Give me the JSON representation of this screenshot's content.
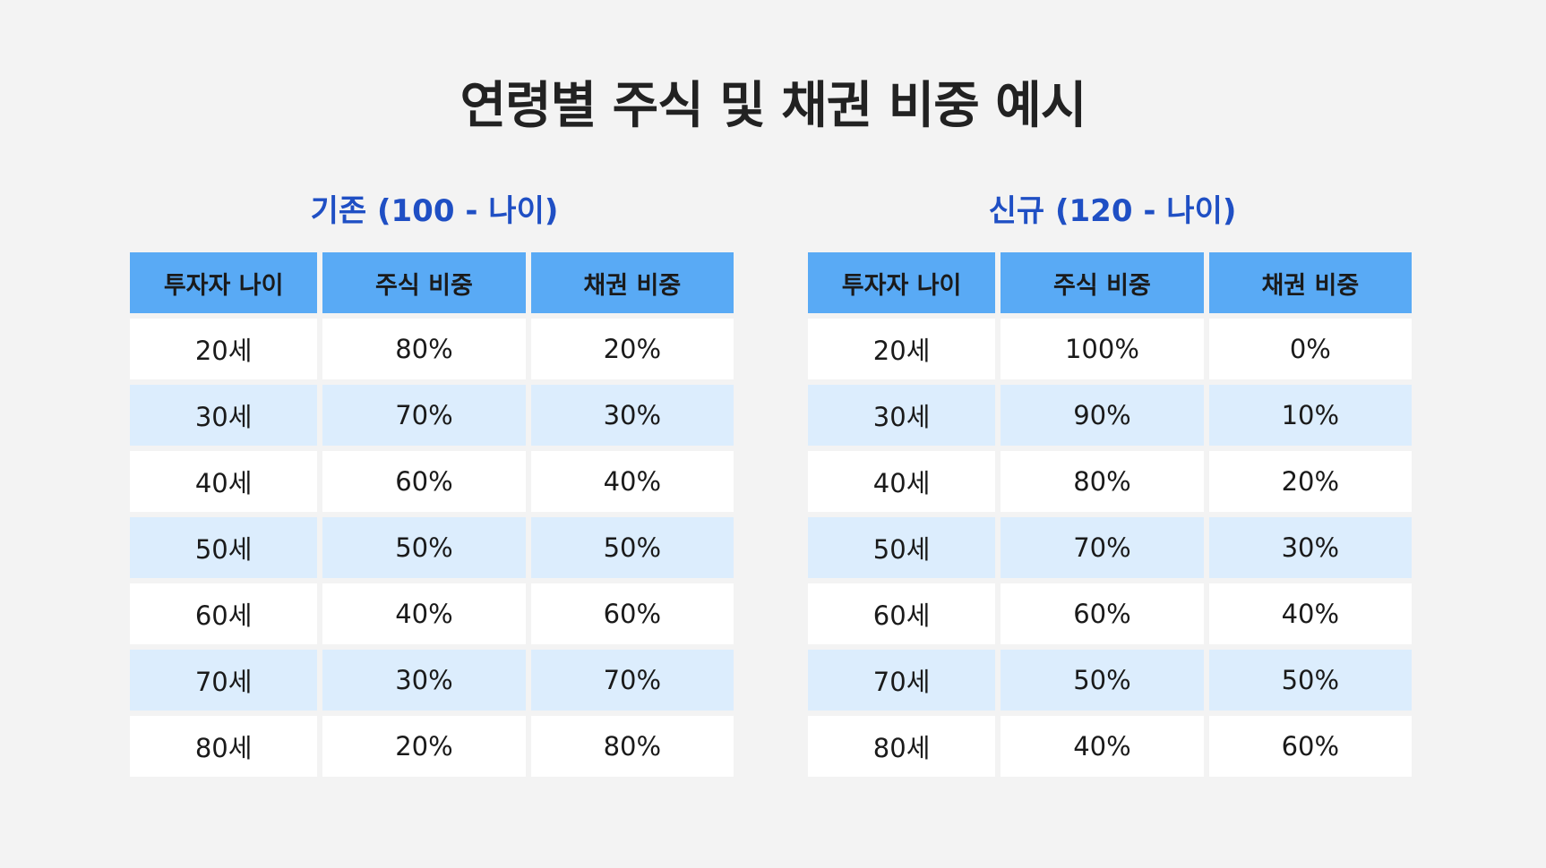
{
  "title": "연령별 주식 및 채권 비중 예시",
  "colors": {
    "background": "#f3f3f3",
    "header_fill": "#59aaf5",
    "subtitle_text": "#1f4fc4",
    "row_white": "#ffffff",
    "row_blue": "#dcedfd"
  },
  "tables": {
    "left": {
      "subtitle": "기존 (100 - 나이)",
      "headers": [
        "투자자 나이",
        "주식 비중",
        "채권 비중"
      ],
      "rows": [
        [
          "20세",
          "80%",
          "20%"
        ],
        [
          "30세",
          "70%",
          "30%"
        ],
        [
          "40세",
          "60%",
          "40%"
        ],
        [
          "50세",
          "50%",
          "50%"
        ],
        [
          "60세",
          "40%",
          "60%"
        ],
        [
          "70세",
          "30%",
          "70%"
        ],
        [
          "80세",
          "20%",
          "80%"
        ]
      ]
    },
    "right": {
      "subtitle": "신규 (120 - 나이)",
      "headers": [
        "투자자 나이",
        "주식 비중",
        "채권 비중"
      ],
      "rows": [
        [
          "20세",
          "100%",
          "0%"
        ],
        [
          "30세",
          "90%",
          "10%"
        ],
        [
          "40세",
          "80%",
          "20%"
        ],
        [
          "50세",
          "70%",
          "30%"
        ],
        [
          "60세",
          "60%",
          "40%"
        ],
        [
          "70세",
          "50%",
          "50%"
        ],
        [
          "80세",
          "40%",
          "60%"
        ]
      ]
    }
  }
}
